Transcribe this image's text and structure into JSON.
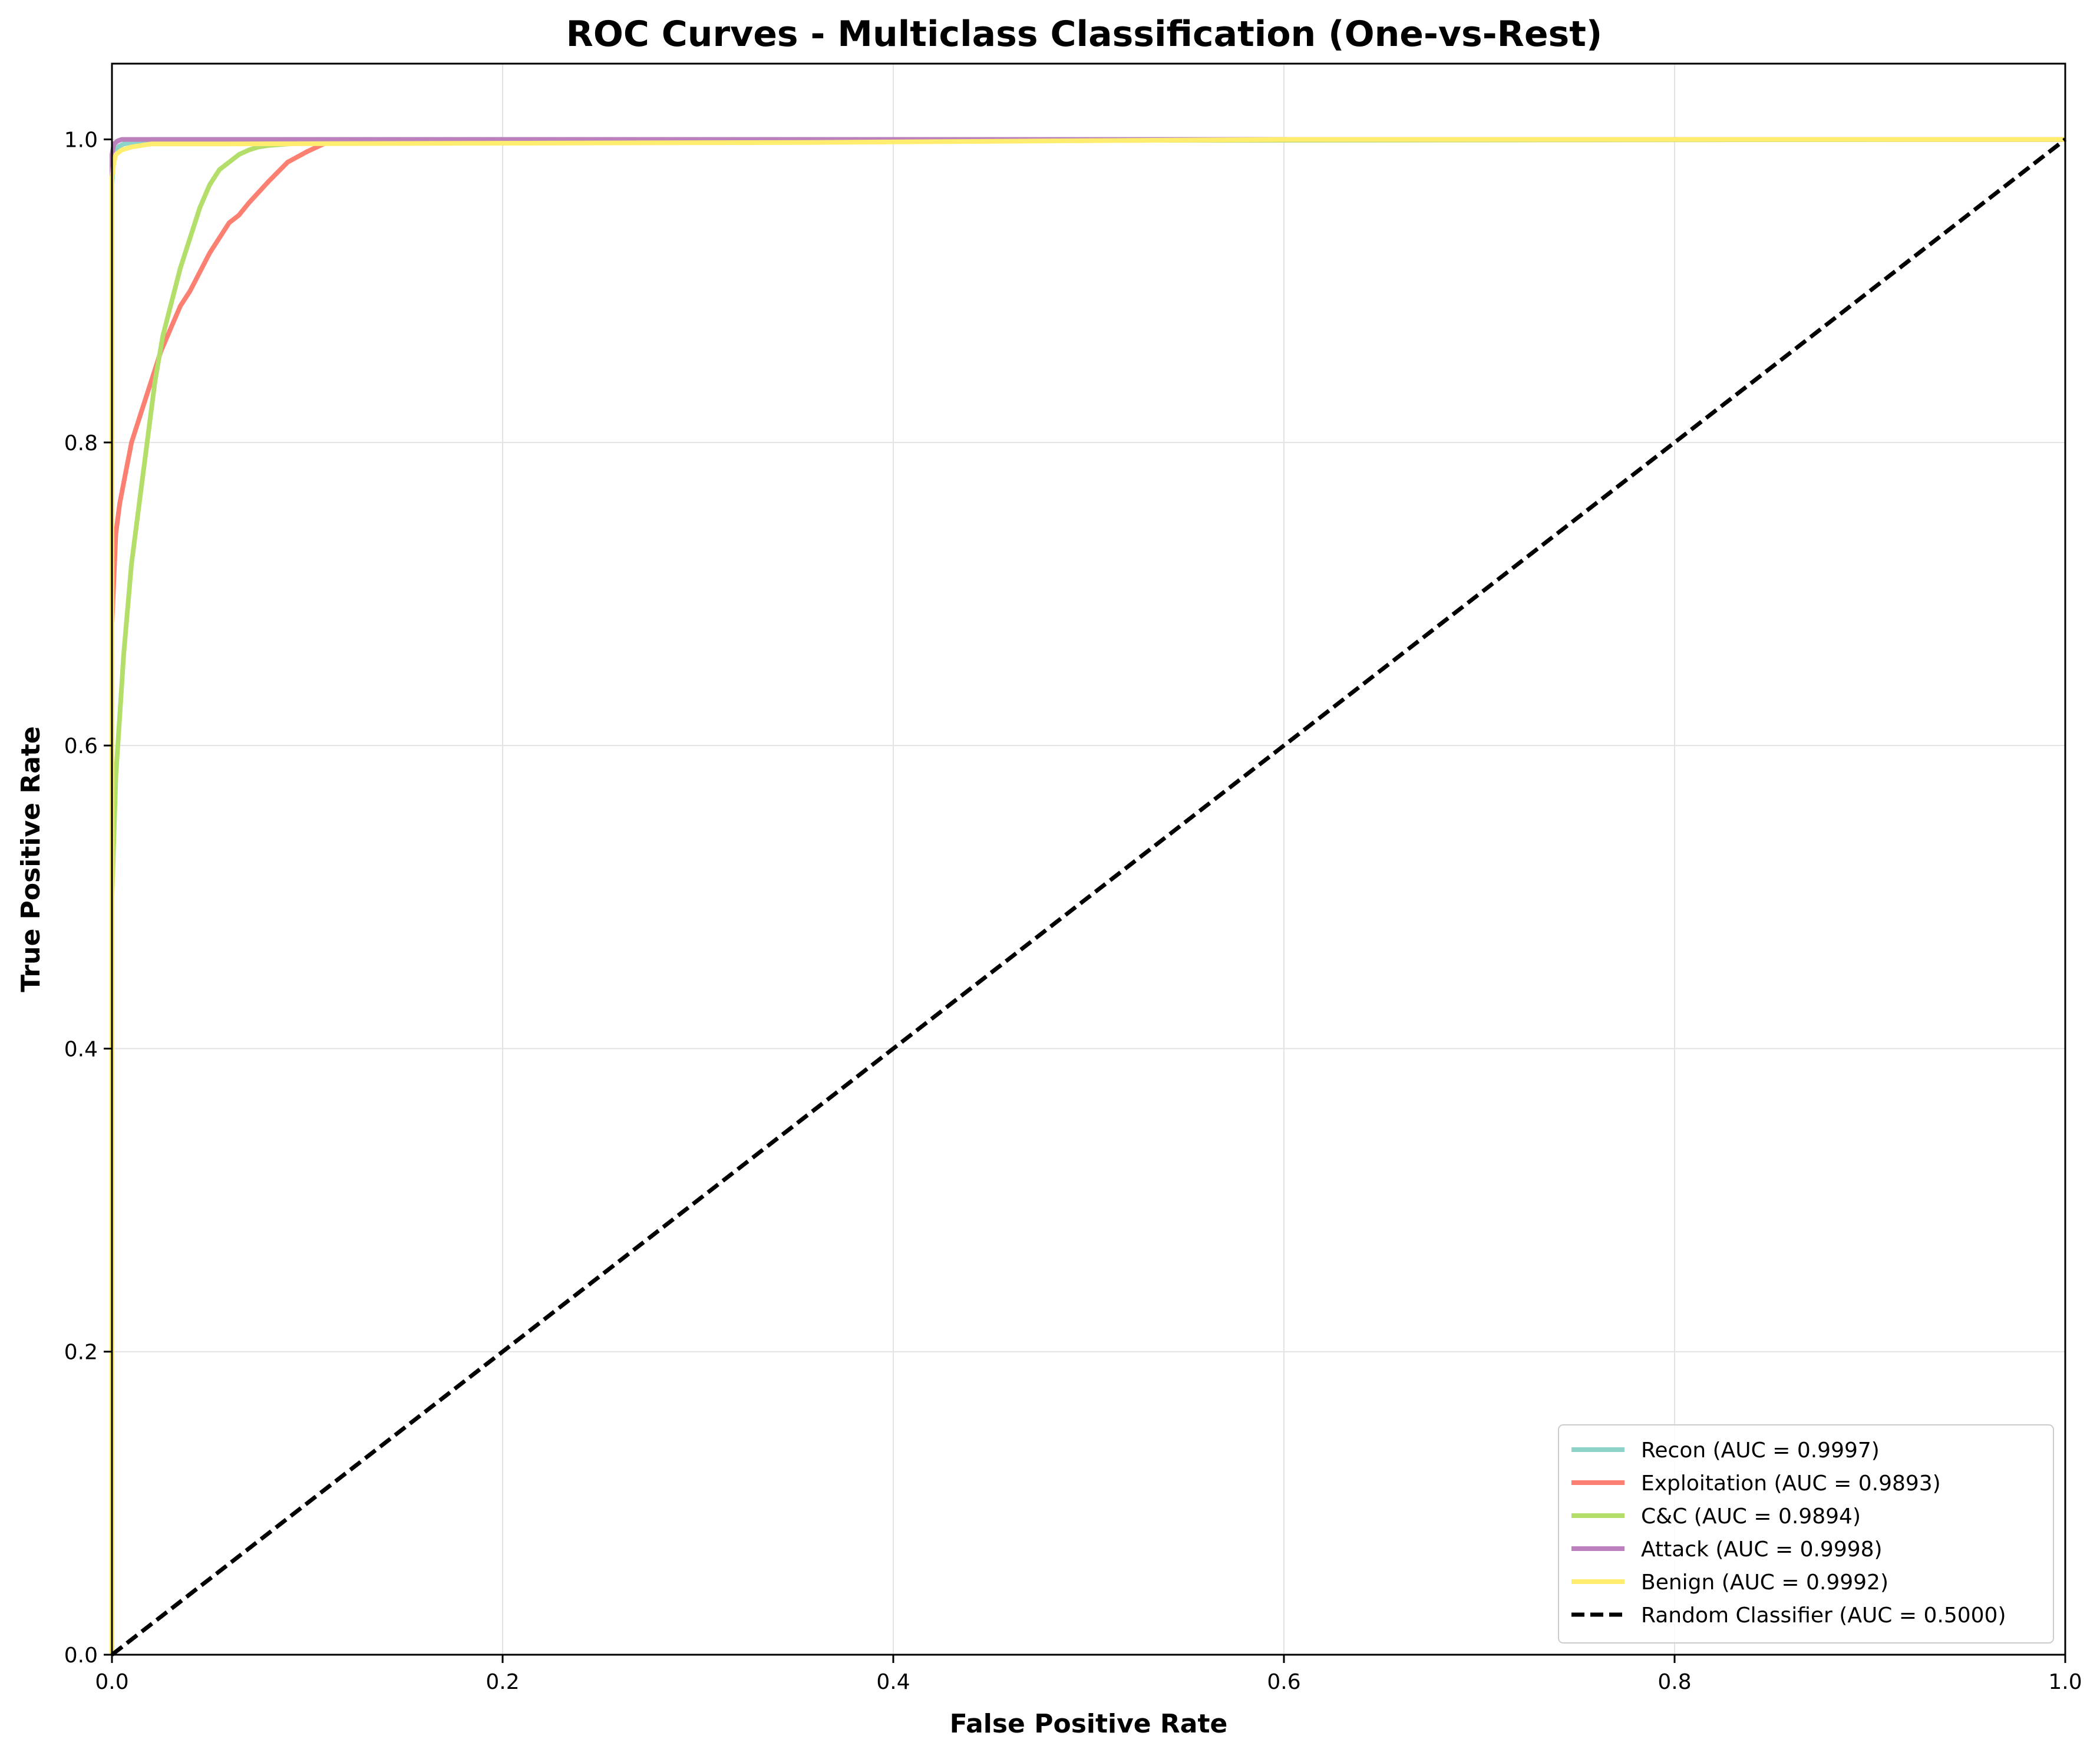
{
  "chart_data": {
    "type": "line",
    "title": "ROC Curves - Multiclass Classification (One-vs-Rest)",
    "xlabel": "False Positive Rate",
    "ylabel": "True Positive Rate",
    "xlim": [
      0,
      1
    ],
    "ylim": [
      0,
      1.05
    ],
    "x_ticks": [
      0.0,
      0.2,
      0.4,
      0.6,
      0.8,
      1.0
    ],
    "y_ticks": [
      0.0,
      0.2,
      0.4,
      0.6,
      0.8,
      1.0
    ],
    "x_tick_labels": [
      "0.0",
      "0.2",
      "0.4",
      "0.6",
      "0.8",
      "1.0"
    ],
    "y_tick_labels": [
      "0.0",
      "0.2",
      "0.4",
      "0.6",
      "0.8",
      "1.0"
    ],
    "grid": true,
    "legend_position": "lower-right",
    "series": [
      {
        "name": "Recon (AUC = 0.9997)",
        "color": "#8dd3c7",
        "style": "solid",
        "x": [
          0.0,
          0.0,
          0.001,
          0.003,
          0.006,
          0.01,
          0.02,
          0.5,
          1.0
        ],
        "y": [
          0.0,
          0.97,
          0.99,
          0.995,
          0.997,
          0.998,
          1.0,
          1.0,
          1.0
        ]
      },
      {
        "name": "Exploitation (AUC = 0.9893)",
        "color": "#fb8072",
        "style": "solid",
        "x": [
          0.0,
          0.0,
          0.002,
          0.004,
          0.007,
          0.01,
          0.015,
          0.02,
          0.025,
          0.03,
          0.035,
          0.04,
          0.05,
          0.06,
          0.065,
          0.07,
          0.08,
          0.09,
          0.1,
          0.11,
          0.12,
          0.36,
          0.6,
          1.0
        ],
        "y": [
          0.0,
          0.68,
          0.74,
          0.76,
          0.78,
          0.8,
          0.82,
          0.84,
          0.86,
          0.875,
          0.89,
          0.9,
          0.925,
          0.945,
          0.95,
          0.958,
          0.972,
          0.985,
          0.992,
          0.998,
          0.998,
          0.999,
          1.0,
          1.0
        ]
      },
      {
        "name": "C&C (AUC = 0.9894)",
        "color": "#b3de69",
        "style": "solid",
        "x": [
          0.0,
          0.0,
          0.002,
          0.004,
          0.006,
          0.008,
          0.01,
          0.014,
          0.018,
          0.022,
          0.026,
          0.03,
          0.035,
          0.04,
          0.045,
          0.05,
          0.055,
          0.06,
          0.065,
          0.07,
          0.075,
          0.08,
          0.09,
          0.1,
          0.2,
          1.0
        ],
        "y": [
          0.0,
          0.5,
          0.58,
          0.62,
          0.66,
          0.69,
          0.72,
          0.76,
          0.8,
          0.84,
          0.87,
          0.89,
          0.915,
          0.935,
          0.955,
          0.97,
          0.98,
          0.985,
          0.99,
          0.993,
          0.995,
          0.996,
          0.997,
          0.998,
          0.999,
          1.0
        ]
      },
      {
        "name": "Attack (AUC = 0.9998)",
        "color": "#bc80bd",
        "style": "solid",
        "x": [
          0.0,
          0.0,
          0.001,
          0.003,
          0.005,
          0.01,
          0.02,
          1.0
        ],
        "y": [
          0.0,
          0.99,
          0.997,
          0.999,
          1.0,
          1.0,
          1.0,
          1.0
        ]
      },
      {
        "name": "Benign (AUC = 0.9992)",
        "color": "#ffed6f",
        "style": "solid",
        "x": [
          0.0,
          0.0,
          0.001,
          0.002,
          0.005,
          0.01,
          0.02,
          0.05,
          0.36,
          0.6,
          1.0
        ],
        "y": [
          0.0,
          0.975,
          0.985,
          0.99,
          0.993,
          0.995,
          0.997,
          0.997,
          0.998,
          1.0,
          1.0
        ]
      },
      {
        "name": "Random Classifier (AUC = 0.5000)",
        "color": "#000000",
        "style": "dashed",
        "x": [
          0.0,
          1.0
        ],
        "y": [
          0.0,
          1.0
        ]
      }
    ]
  }
}
